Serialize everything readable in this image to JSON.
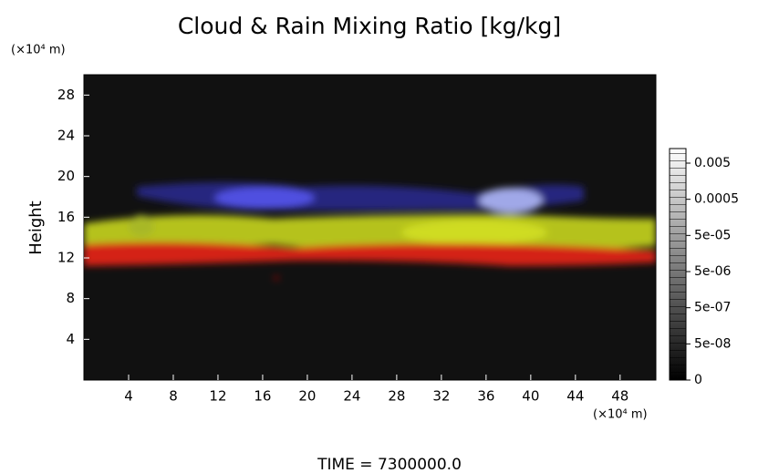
{
  "chart_data": {
    "type": "volume",
    "title": "Cloud & Rain Mixing Ratio [kg/kg]",
    "y_unit": "(×10⁴ m)",
    "x_unit": "(×10⁴ m)",
    "ylabel": "Height",
    "xlim": [
      0,
      51.2
    ],
    "xticks": [
      4,
      8,
      12,
      16,
      20,
      24,
      28,
      32,
      36,
      40,
      44,
      48
    ],
    "ylim": [
      0,
      30
    ],
    "yticks": [
      4,
      8,
      12,
      16,
      20,
      24,
      28
    ],
    "colorbar_ticks": [
      0,
      {
        "value": 5e-08,
        "label": "5e-08"
      },
      {
        "value": 5e-07,
        "label": "5e-07"
      },
      {
        "value": 5e-06,
        "label": "5e-06"
      },
      {
        "value": 5e-05,
        "label": "5e-05"
      },
      0.0005,
      0.005
    ],
    "footer": "TIME = 7300000.0"
  }
}
